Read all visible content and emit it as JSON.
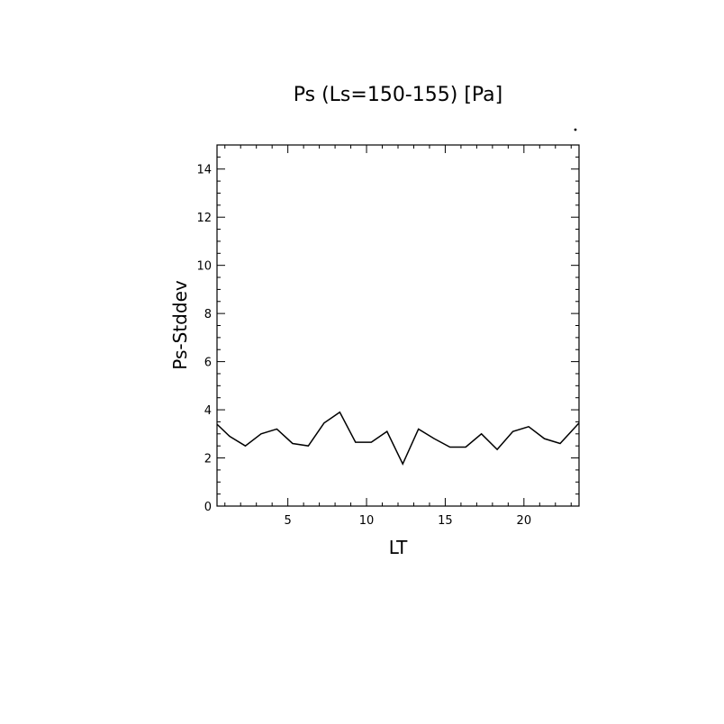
{
  "chart_data": {
    "type": "line",
    "title": "Ps (Ls=150-155) [Pa]",
    "xlabel": "LT",
    "ylabel": "Ps-Stddev",
    "xlim": [
      0.5,
      23.5
    ],
    "ylim": [
      0,
      15
    ],
    "x_ticks": [
      5,
      10,
      15,
      20
    ],
    "y_ticks": [
      0,
      2,
      4,
      6,
      8,
      10,
      12,
      14
    ],
    "grid": false,
    "series": [
      {
        "x": [
          0.5,
          1.3,
          2.3,
          3.3,
          4.3,
          5.3,
          6.3,
          7.3,
          8.3,
          9.3,
          10.3,
          11.3,
          12.3,
          13.3,
          14.3,
          15.3,
          16.3,
          17.3,
          18.3,
          19.3,
          20.3,
          21.3,
          22.3,
          23.5
        ],
        "values": [
          3.4,
          2.9,
          2.5,
          3.0,
          3.2,
          2.6,
          2.5,
          3.45,
          3.9,
          2.65,
          2.65,
          3.1,
          1.75,
          3.2,
          2.8,
          2.45,
          2.45,
          3.0,
          2.35,
          3.1,
          3.3,
          2.8,
          2.6,
          3.45
        ],
        "color": "#000000"
      }
    ]
  }
}
